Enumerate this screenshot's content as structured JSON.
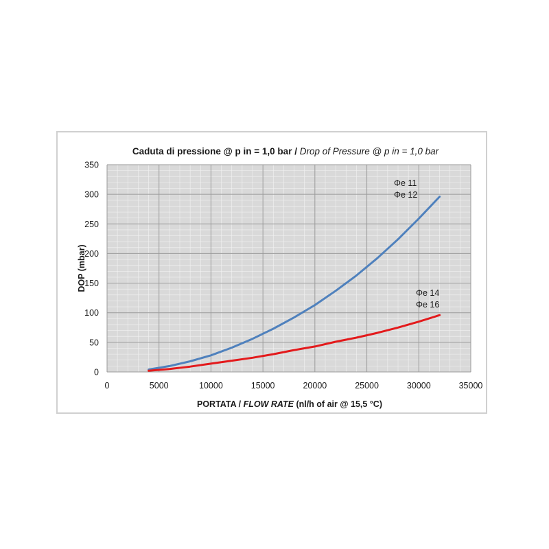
{
  "chart_data": {
    "type": "line",
    "title_bold": "Caduta di pressione @ p in = 1,0 bar / ",
    "title_italic": "Drop of Pressure @ p in = 1,0 bar",
    "xlabel_bold": "PORTATA / ",
    "xlabel_italic": "FLOW RATE",
    "xlabel_rest": " (nl/h of air @ 15,5 °C)",
    "ylabel": "DOP  (mbar)",
    "xlim": [
      0,
      35000
    ],
    "ylim": [
      0,
      350
    ],
    "xticks": [
      0,
      5000,
      10000,
      15000,
      20000,
      25000,
      30000,
      35000
    ],
    "yticks": [
      0,
      50,
      100,
      150,
      200,
      250,
      300,
      350
    ],
    "grid": true,
    "background": "#d9d9d9",
    "series": [
      {
        "color": "#4f81bd",
        "x": [
          4000,
          6000,
          8000,
          10000,
          12000,
          14000,
          16000,
          18000,
          20000,
          22000,
          24000,
          26000,
          28000,
          30000,
          32000
        ],
        "y": [
          4,
          10,
          18,
          28,
          41,
          56,
          73,
          92,
          113,
          137,
          163,
          192,
          224,
          259,
          296
        ]
      },
      {
        "color": "#e31a1c",
        "x": [
          4000,
          6000,
          8000,
          10000,
          12000,
          14000,
          16000,
          18000,
          20000,
          22000,
          24000,
          26000,
          28000,
          30000,
          32000
        ],
        "y": [
          2,
          5,
          9,
          14,
          19,
          24,
          30,
          37,
          43,
          51,
          58,
          66,
          75,
          85,
          96
        ]
      }
    ],
    "annotations": [
      {
        "text": "Φe 11"
      },
      {
        "text": "Φe 12"
      },
      {
        "text": "Φe 14"
      },
      {
        "text": "Φe 16"
      }
    ]
  }
}
